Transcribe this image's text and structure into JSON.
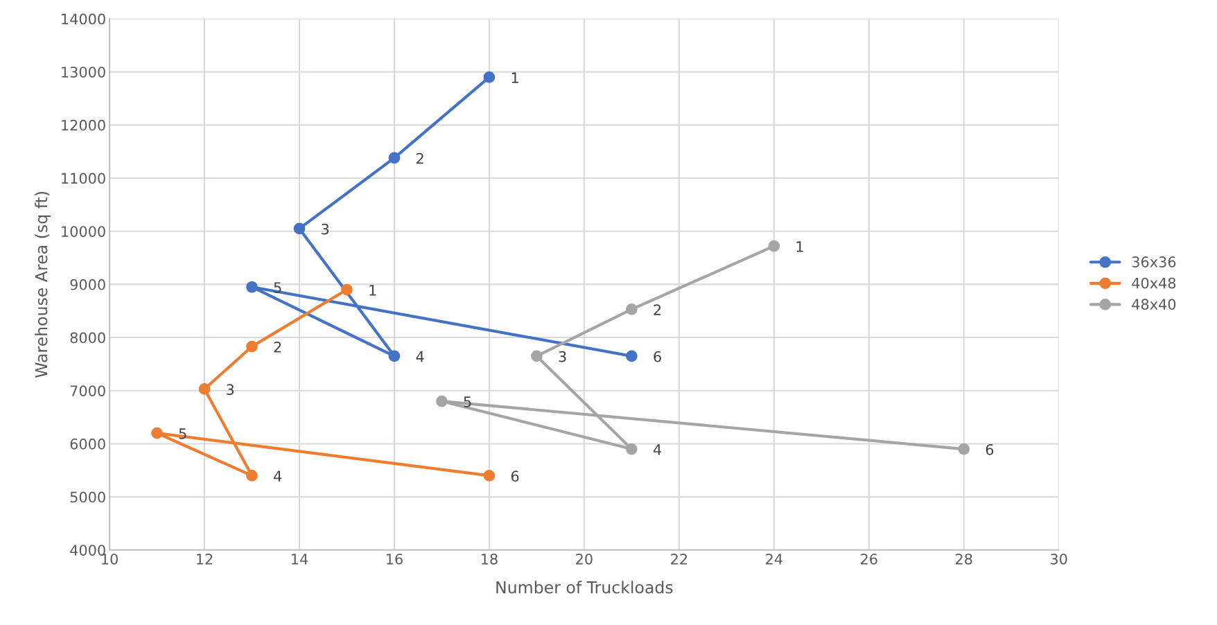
{
  "chart_data": {
    "type": "line",
    "xlabel": "Number of Truckloads",
    "ylabel": "Warehouse Area (sq ft)",
    "xlim": [
      10,
      30
    ],
    "xticks": [
      10,
      12,
      14,
      16,
      18,
      20,
      22,
      24,
      26,
      28,
      30
    ],
    "ylim": [
      4000,
      14000
    ],
    "yticks": [
      4000,
      5000,
      6000,
      7000,
      8000,
      9000,
      10000,
      11000,
      12000,
      13000,
      14000
    ],
    "grid": true,
    "legend": "right",
    "marker": "circle",
    "line_style": "solid",
    "series": [
      {
        "name": "36x36",
        "color": "#4472c4",
        "x": [
          18,
          16,
          14,
          16,
          13,
          21
        ],
        "values": [
          12900,
          11380,
          10050,
          7650,
          8950,
          7650
        ]
      },
      {
        "name": "40x48",
        "color": "#ed7d31",
        "x": [
          15,
          13,
          12,
          13,
          11,
          18
        ],
        "values": [
          8900,
          7830,
          7030,
          5400,
          6200,
          5400
        ]
      },
      {
        "name": "48x40",
        "color": "#a5a5a5",
        "x": [
          24,
          21,
          19,
          21,
          17,
          28
        ],
        "values": [
          9720,
          8530,
          7650,
          5900,
          6800,
          5900
        ]
      }
    ],
    "annotations": [
      {
        "text": "1",
        "x": 18,
        "y": 12900
      },
      {
        "text": "2",
        "x": 16,
        "y": 11380
      },
      {
        "text": "3",
        "x": 14,
        "y": 10050
      },
      {
        "text": "4",
        "x": 16,
        "y": 7650
      },
      {
        "text": "5",
        "x": 13,
        "y": 8950
      },
      {
        "text": "6",
        "x": 21,
        "y": 7650
      },
      {
        "text": "1",
        "x": 15,
        "y": 8900
      },
      {
        "text": "2",
        "x": 13,
        "y": 7830
      },
      {
        "text": "3",
        "x": 12,
        "y": 7030
      },
      {
        "text": "4",
        "x": 13,
        "y": 5400
      },
      {
        "text": "5",
        "x": 11,
        "y": 6200
      },
      {
        "text": "6",
        "x": 18,
        "y": 5400
      },
      {
        "text": "1",
        "x": 24,
        "y": 9720
      },
      {
        "text": "2",
        "x": 21,
        "y": 8530
      },
      {
        "text": "3",
        "x": 19,
        "y": 7650
      },
      {
        "text": "4",
        "x": 21,
        "y": 5900
      },
      {
        "text": "5",
        "x": 17,
        "y": 6800
      },
      {
        "text": "6",
        "x": 28,
        "y": 5900
      }
    ]
  }
}
